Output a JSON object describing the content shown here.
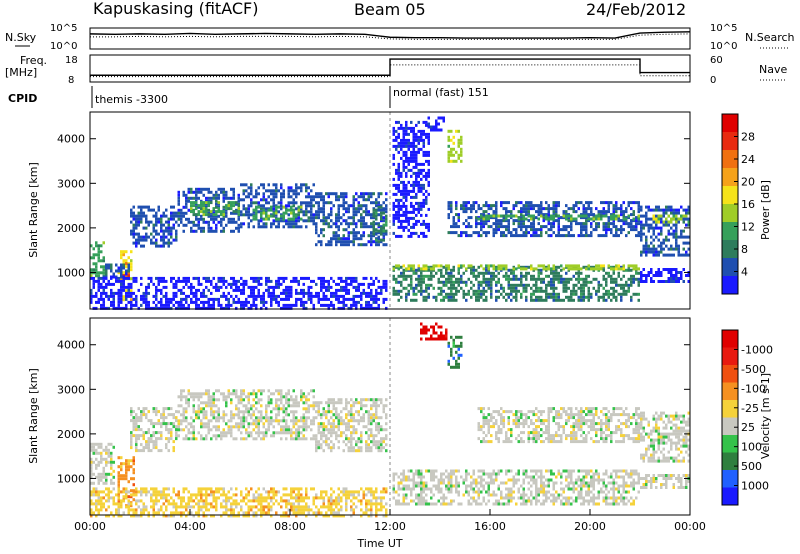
{
  "header": {
    "station": "Kapuskasing (fitACF)",
    "beam": "Beam 05",
    "date": "24/Feb/2012"
  },
  "chart_data": [
    {
      "type": "line",
      "panel": "noise",
      "left_label": "N.Sky",
      "right_label": "N.Search",
      "left_ticks": [
        "10^5",
        "10^0"
      ],
      "right_ticks": [
        "10^5",
        "10^0"
      ],
      "x": [
        0,
        1,
        2,
        3,
        4,
        5,
        6,
        7,
        8,
        9,
        10,
        11,
        12,
        13,
        14,
        15,
        16,
        17,
        18,
        19,
        20,
        21,
        22,
        23,
        24
      ],
      "series": [
        {
          "values": [
            3.6,
            3.5,
            3.6,
            3.5,
            3.7,
            3.5,
            3.6,
            3.7,
            3.6,
            3.5,
            3.6,
            3.5,
            2.8,
            2.7,
            2.7,
            2.6,
            2.6,
            2.6,
            2.6,
            2.6,
            2.7,
            2.6,
            3.8,
            4.0,
            4.1
          ]
        },
        {
          "values": [
            2.9,
            2.9,
            3.0,
            2.9,
            3.0,
            2.9,
            3.0,
            3.0,
            3.0,
            2.9,
            3.0,
            2.9,
            2.4,
            2.3,
            2.3,
            2.3,
            2.3,
            2.3,
            2.3,
            2.3,
            2.3,
            2.3,
            3.3,
            3.5,
            3.6
          ]
        }
      ]
    },
    {
      "type": "line",
      "panel": "frequency",
      "left_label": "Freq.",
      "left_unit": "[MHz]",
      "right_label": "Nave",
      "left_ticks": [
        "18",
        "8"
      ],
      "right_ticks": [
        "60",
        "0"
      ],
      "x": [
        0,
        12,
        12,
        22,
        22,
        24
      ],
      "series": [
        {
          "values": [
            10.5,
            10.5,
            16.5,
            16.5,
            11.5,
            11.5
          ]
        },
        {
          "values": [
            12,
            12,
            38,
            38,
            14,
            14
          ]
        }
      ]
    },
    {
      "type": "table",
      "panel": "cpid",
      "label": "CPID",
      "segments": [
        {
          "start": 0,
          "end": 12,
          "text": "themis -3300"
        },
        {
          "start": 12,
          "end": 24,
          "text": "normal (fast) 151"
        }
      ]
    },
    {
      "type": "heatmap",
      "panel": "power",
      "ylabel": "Slant Range [km]",
      "yticks": [
        1000,
        2000,
        3000,
        4000
      ],
      "ylim": [
        180,
        4600
      ],
      "xlim": [
        0,
        24
      ],
      "colorbar_label": "Power [dB]",
      "colorbar_ticks": [
        "4",
        "8",
        "12",
        "16",
        "20",
        "24",
        "28"
      ],
      "colorbar_colors": [
        "#1a1aff",
        "#1f4fb0",
        "#2e7c5c",
        "#36a05a",
        "#9fcd28",
        "#f5e31a",
        "#f5a21a",
        "#f07010",
        "#e82a10",
        "#e00000"
      ],
      "regions": [
        {
          "t0": 0.0,
          "t1": 0.6,
          "r0": 900,
          "r1": 1700,
          "level": 3
        },
        {
          "t0": 1.1,
          "t1": 1.7,
          "r0": 400,
          "r1": 1500,
          "level": 5
        },
        {
          "t0": 1.3,
          "t1": 1.6,
          "r0": 900,
          "r1": 1300,
          "level": 7
        },
        {
          "t0": 0.4,
          "t1": 1.6,
          "r0": 900,
          "r1": 1200,
          "level": 1
        },
        {
          "t0": 1.6,
          "t1": 3.5,
          "r0": 1600,
          "r1": 2500,
          "level": 1
        },
        {
          "t0": 3.5,
          "t1": 6.0,
          "r0": 1900,
          "r1": 2900,
          "level": 1
        },
        {
          "t0": 4.0,
          "t1": 6.0,
          "r0": 2300,
          "r1": 2600,
          "level": 3
        },
        {
          "t0": 6.0,
          "t1": 9.0,
          "r0": 2000,
          "r1": 3000,
          "level": 1
        },
        {
          "t0": 6.5,
          "t1": 8.5,
          "r0": 2200,
          "r1": 2500,
          "level": 3
        },
        {
          "t0": 9.0,
          "t1": 11.9,
          "r0": 1600,
          "r1": 2800,
          "level": 1
        },
        {
          "t0": 11.3,
          "t1": 11.9,
          "r0": 1700,
          "r1": 2500,
          "level": 2
        },
        {
          "t0": 0.0,
          "t1": 11.9,
          "r0": 180,
          "r1": 900,
          "level": 0
        },
        {
          "t0": 12.1,
          "t1": 22.0,
          "r0": 400,
          "r1": 1150,
          "level": 2
        },
        {
          "t0": 12.1,
          "t1": 22.0,
          "r0": 1080,
          "r1": 1180,
          "level": 4
        },
        {
          "t0": 12.1,
          "t1": 13.6,
          "r0": 1800,
          "r1": 4400,
          "level": 0
        },
        {
          "t0": 13.5,
          "t1": 14.2,
          "r0": 4200,
          "r1": 4500,
          "level": 0
        },
        {
          "t0": 14.3,
          "t1": 14.9,
          "r0": 3500,
          "r1": 4200,
          "level": 4
        },
        {
          "t0": 14.3,
          "t1": 22.0,
          "r0": 1800,
          "r1": 2600,
          "level": 1
        },
        {
          "t0": 15.5,
          "t1": 22.0,
          "r0": 2200,
          "r1": 2300,
          "level": 3
        },
        {
          "t0": 22.0,
          "t1": 24.0,
          "r0": 1400,
          "r1": 2500,
          "level": 1
        },
        {
          "t0": 22.5,
          "t1": 24.0,
          "r0": 2100,
          "r1": 2300,
          "level": 4
        },
        {
          "t0": 22.0,
          "t1": 24.0,
          "r0": 800,
          "r1": 1100,
          "level": 0
        }
      ]
    },
    {
      "type": "heatmap",
      "panel": "velocity",
      "ylabel": "Slant Range [km]",
      "xlabel": "Time UT",
      "yticks": [
        1000,
        2000,
        3000,
        4000
      ],
      "ylim": [
        180,
        4600
      ],
      "xlim": [
        0,
        24
      ],
      "xticks": [
        "00:00",
        "04:00",
        "08:00",
        "12:00",
        "16:00",
        "20:00",
        "00:00"
      ],
      "colorbar_label": "Velocity [m s-1]",
      "colorbar_ticks": [
        "1000",
        "500",
        "100",
        "25",
        "-25",
        "-100",
        "-500",
        "-1000"
      ],
      "colorbar_colors": [
        "#1a1aff",
        "#2060ff",
        "#2f7f3f",
        "#34c24a",
        "#c8c8c0",
        "#f5d23a",
        "#f59020",
        "#f05010",
        "#e81a10",
        "#e00000"
      ],
      "regions": [
        {
          "t0": 0.0,
          "t1": 1.0,
          "r0": 900,
          "r1": 1800,
          "level": 4
        },
        {
          "t0": 1.1,
          "t1": 1.8,
          "r0": 400,
          "r1": 1500,
          "level": 6
        },
        {
          "t0": 1.6,
          "t1": 3.5,
          "r0": 1600,
          "r1": 2600,
          "level": 4
        },
        {
          "t0": 3.5,
          "t1": 9.0,
          "r0": 1900,
          "r1": 3000,
          "level": 4
        },
        {
          "t0": 9.0,
          "t1": 11.9,
          "r0": 1600,
          "r1": 2800,
          "level": 4
        },
        {
          "t0": 0.0,
          "t1": 11.9,
          "r0": 180,
          "r1": 800,
          "level": 5
        },
        {
          "t0": 12.1,
          "t1": 22.0,
          "r0": 400,
          "r1": 1200,
          "level": 4
        },
        {
          "t0": 13.2,
          "t1": 14.2,
          "r0": 4150,
          "r1": 4500,
          "level": 9
        },
        {
          "t0": 14.3,
          "t1": 14.9,
          "r0": 3500,
          "r1": 4200,
          "level": 2
        },
        {
          "t0": 15.5,
          "t1": 22.0,
          "r0": 1800,
          "r1": 2600,
          "level": 4
        },
        {
          "t0": 22.0,
          "t1": 24.0,
          "r0": 1400,
          "r1": 2500,
          "level": 4
        },
        {
          "t0": 22.0,
          "t1": 24.0,
          "r0": 800,
          "r1": 1100,
          "level": 4
        }
      ]
    }
  ]
}
